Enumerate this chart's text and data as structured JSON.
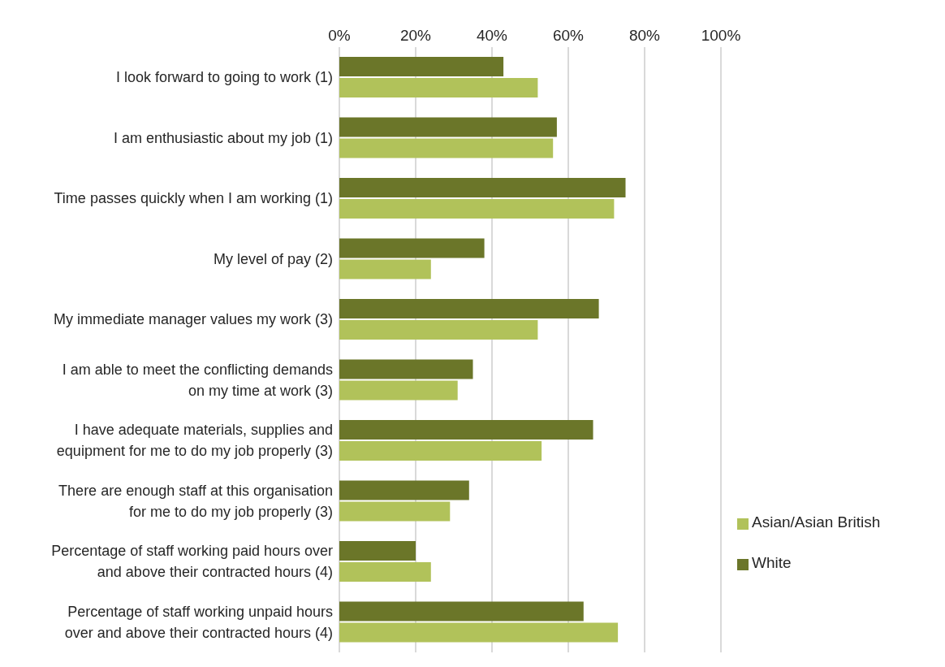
{
  "chart_data": {
    "type": "bar",
    "orientation": "horizontal",
    "categories": [
      "I look forward to going to work (1)",
      "I am enthusiastic about my job (1)",
      "Time passes quickly when I am working (1)",
      "My level of pay (2)",
      "My immediate manager values my work (3)",
      "I am able to meet the conflicting demands on my time at work (3)",
      "I have adequate materials, supplies and equipment for me to do my job properly (3)",
      "There are enough staff at this organisation for me to do my job properly (3)",
      "Percentage of staff working paid hours over and above their contracted hours (4)",
      "Percentage of staff working unpaid hours over and above their contracted hours (4)"
    ],
    "series": [
      {
        "name": "White",
        "color": "#6b7629",
        "values": [
          43,
          57,
          75,
          38,
          68,
          35,
          66.5,
          34,
          20,
          64
        ]
      },
      {
        "name": "Asian/Asian British",
        "color": "#b1c25a",
        "values": [
          52,
          56,
          72,
          24,
          52,
          31,
          53,
          29,
          24,
          73
        ]
      }
    ],
    "xlim": [
      0,
      100
    ],
    "xticks": [
      {
        "value": 0,
        "label": "0%"
      },
      {
        "value": 20,
        "label": "20%"
      },
      {
        "value": 40,
        "label": "40%"
      },
      {
        "value": 60,
        "label": "60%"
      },
      {
        "value": 80,
        "label": "80%"
      },
      {
        "value": 100,
        "label": "100%"
      }
    ],
    "grid": "x",
    "legend": "right"
  }
}
